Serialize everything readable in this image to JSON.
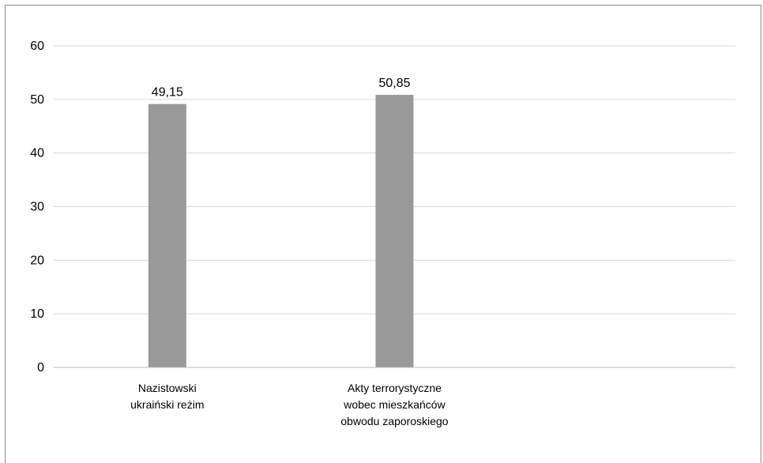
{
  "chart_data": {
    "type": "bar",
    "categories": [
      [
        "Nazistowski",
        "ukraiński reżim"
      ],
      [
        "Akty terrorystyczne",
        "wobec mieszkańców",
        "obwodu zaporoskiego"
      ],
      []
    ],
    "values": [
      49.15,
      50.85,
      null
    ],
    "data_labels": [
      "49,15",
      "50,85",
      ""
    ],
    "title": "",
    "xlabel": "",
    "ylabel": "",
    "ylim": [
      0,
      60
    ],
    "yticks": [
      0,
      10,
      20,
      30,
      40,
      50,
      60
    ],
    "ytick_labels": [
      "0",
      "10",
      "20",
      "30",
      "40",
      "50",
      "60"
    ],
    "grid": true,
    "legend": "none",
    "bar_color": "#999999",
    "gridline_color": "#d9d9d9",
    "axis_color": "#bfbfbf"
  }
}
